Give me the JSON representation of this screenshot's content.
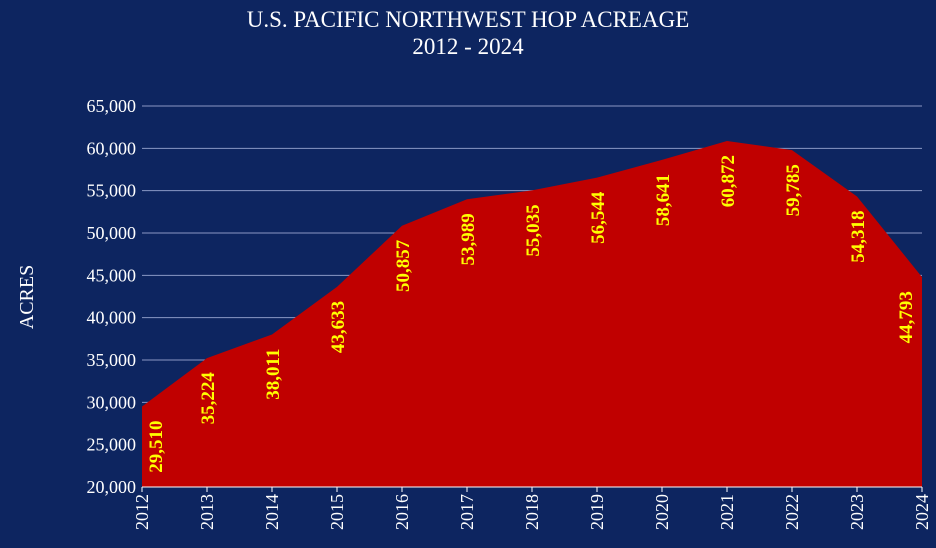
{
  "chart_data": {
    "type": "area",
    "title": "U.S. PACIFIC NORTHWEST HOP ACREAGE",
    "subtitle": "2012 - 2024",
    "xlabel": "",
    "ylabel": "ACRES",
    "ylim": [
      20000,
      65000
    ],
    "ytick_step": 5000,
    "yticks": [
      "20,000",
      "25,000",
      "30,000",
      "35,000",
      "40,000",
      "45,000",
      "50,000",
      "55,000",
      "60,000",
      "65,000"
    ],
    "grid": true,
    "categories": [
      "2012",
      "2013",
      "2014",
      "2015",
      "2016",
      "2017",
      "2018",
      "2019",
      "2020",
      "2021",
      "2022",
      "2023",
      "2024"
    ],
    "values": [
      29510,
      35224,
      38011,
      43633,
      50857,
      53989,
      55035,
      56544,
      58641,
      60872,
      59785,
      54318,
      44793
    ],
    "data_labels": [
      "29,510",
      "35,224",
      "38,011",
      "43,633",
      "50,857",
      "53,989",
      "55,035",
      "56,544",
      "58,641",
      "60,872",
      "59,785",
      "54,318",
      "44,793"
    ],
    "colors": {
      "background": "#0d2560",
      "area": "#c00000",
      "label": "#ffff00",
      "grid": "#8a98c4",
      "axis_text": "#ffffff"
    }
  }
}
